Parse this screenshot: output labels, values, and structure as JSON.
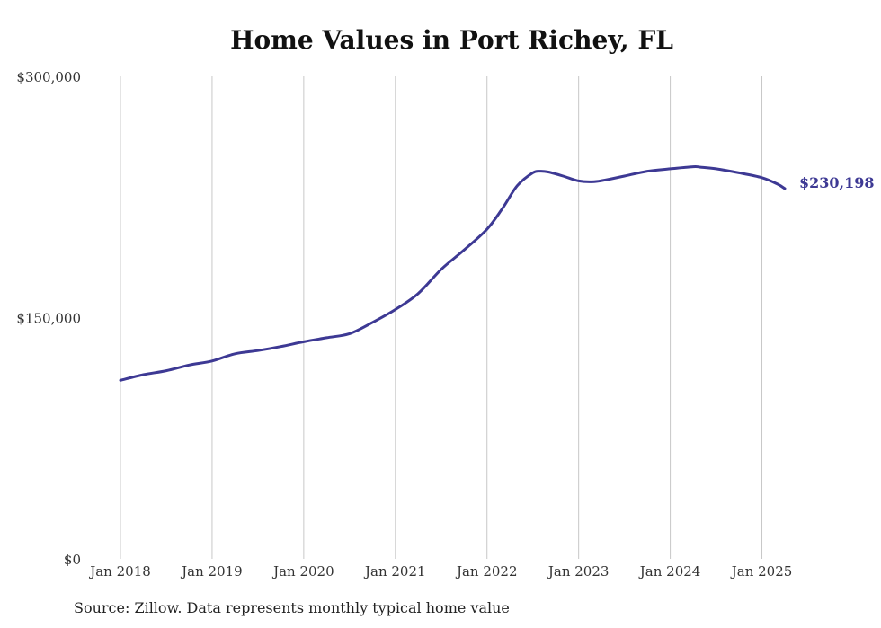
{
  "chart_data": {
    "type": "line",
    "title": "Home Values in Port Richey, FL",
    "xlabel": "",
    "ylabel": "",
    "ylim": [
      0,
      300000
    ],
    "y_ticks": [
      "$0",
      "$150,000",
      "$300,000"
    ],
    "y_tick_values": [
      0,
      150000,
      300000
    ],
    "x_ticks": [
      "Jan 2018",
      "Jan 2019",
      "Jan 2020",
      "Jan 2021",
      "Jan 2022",
      "Jan 2023",
      "Jan 2024",
      "Jan 2025"
    ],
    "x_tick_values": [
      2018,
      2019,
      2020,
      2021,
      2022,
      2023,
      2024,
      2025
    ],
    "xlim": [
      2018,
      2025.25
    ],
    "grid": "vertical",
    "line_color": "#3d3994",
    "end_label": "$230,198",
    "series": [
      {
        "x": [
          2018.0,
          2018.25,
          2018.5,
          2018.75,
          2019.0,
          2019.25,
          2019.5,
          2019.75,
          2020.0,
          2020.25,
          2020.5,
          2020.75,
          2021.0,
          2021.25,
          2021.5,
          2021.75,
          2022.0,
          2022.17,
          2022.33,
          2022.5,
          2022.58,
          2022.67,
          2022.83,
          2023.0,
          2023.17,
          2023.33,
          2023.5,
          2023.75,
          2024.0,
          2024.25,
          2024.33,
          2024.5,
          2024.75,
          2025.0,
          2025.17,
          2025.25
        ],
        "y": [
          111000,
          114500,
          117000,
          120500,
          123000,
          127500,
          129500,
          132000,
          135000,
          137500,
          140000,
          147000,
          155000,
          165000,
          180000,
          192000,
          205000,
          218000,
          232000,
          240000,
          241000,
          240500,
          238000,
          235000,
          234500,
          236000,
          238000,
          241000,
          242500,
          243800,
          243500,
          242500,
          240000,
          237000,
          233000,
          230198
        ]
      }
    ]
  },
  "source_note": "Source: Zillow. Data represents monthly typical home value"
}
